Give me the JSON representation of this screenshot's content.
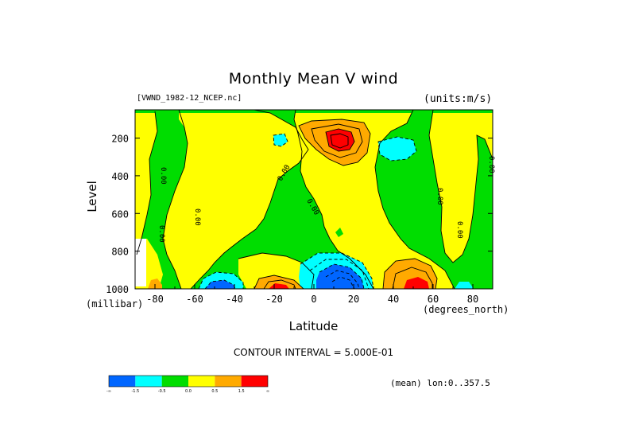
{
  "chart_data": {
    "type": "heatmap",
    "title": "Monthly Mean V wind",
    "file_label": "[VWND_1982-12_NCEP.nc]",
    "units_label": "(units:m/s)",
    "xlabel": "Latitude",
    "ylabel": "Level",
    "x_unit": "(degrees_north)",
    "y_unit": "(millibar)",
    "xlim": [
      -90,
      90
    ],
    "ylim": [
      1000,
      50
    ],
    "y_inverted": true,
    "x_ticks": [
      -80,
      -60,
      -40,
      -20,
      0,
      20,
      40,
      60,
      80
    ],
    "x_tick_labels": [
      "-80",
      "-60",
      "-40",
      "-20",
      "0",
      "20",
      "40",
      "60",
      "80"
    ],
    "y_ticks": [
      200,
      400,
      600,
      800,
      1000
    ],
    "y_tick_labels": [
      "200",
      "400",
      "600",
      "800",
      "1000"
    ],
    "contour_interval": "CONTOUR INTERVAL = 5.000E-01",
    "zero_contour_label": "0.00",
    "mean_label": "(mean) lon:0..357.5",
    "legend": {
      "placement": "bottom-left",
      "bins": [
        {
          "color": "#0066ff",
          "range": [
            null,
            -1.5
          ]
        },
        {
          "color": "#00ffff",
          "range": [
            -1.5,
            -0.5
          ]
        },
        {
          "color": "#00dd00",
          "range": [
            -0.5,
            0.0
          ]
        },
        {
          "color": "#ffff00",
          "range": [
            0.0,
            0.5
          ]
        },
        {
          "color": "#ffaa00",
          "range": [
            0.5,
            1.5
          ]
        },
        {
          "color": "#ff0000",
          "range": [
            1.5,
            null
          ]
        }
      ],
      "tick_labels": [
        "-∞",
        "-1.5",
        "-0.5",
        "0.0",
        "0.5",
        "1.5",
        "∞"
      ]
    },
    "features": [
      {
        "name": "positive-max-upper-tropics",
        "lat": 12,
        "level": 170,
        "value": 2.5
      },
      {
        "name": "positive-max-near-surface-nh",
        "lat": 50,
        "level": 980,
        "value": 2.0
      },
      {
        "name": "positive-max-near-surface-sh",
        "lat": -20,
        "level": 990,
        "value": 1.0
      },
      {
        "name": "negative-min-near-surface-tropics",
        "lat": 12,
        "level": 950,
        "value": -2.5
      },
      {
        "name": "negative-min-near-surface-sh",
        "lat": -45,
        "level": 980,
        "value": -1.5
      },
      {
        "name": "negative-min-upper-nh",
        "lat": 50,
        "level": 210,
        "value": -1.0
      },
      {
        "name": "negative-min-upper-sh",
        "lat": -20,
        "level": 150,
        "value": -1.0
      }
    ]
  }
}
